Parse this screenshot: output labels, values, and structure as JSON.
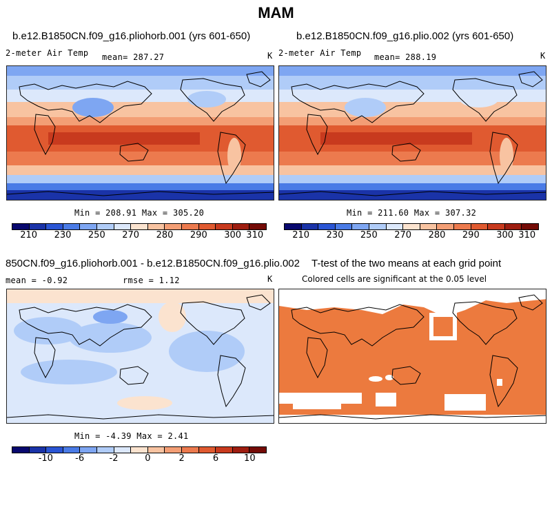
{
  "figure_title": "MAM",
  "panels": {
    "p1": {
      "title": "b.e12.B1850CN.f09_g16.pliohorb.001 (yrs 601-650)",
      "variable": "2-meter Air Temp",
      "mean_label": "mean= 287.27",
      "units": "K",
      "minmax": "Min = 208.91  Max = 305.20"
    },
    "p2": {
      "title": "b.e12.B1850CN.f09_g16.plio.002 (yrs 601-650)",
      "variable": "2-meter Air Temp",
      "mean_label": "mean= 288.19",
      "units": "K",
      "minmax": "Min = 211.60  Max = 307.32"
    },
    "p3": {
      "title": "850CN.f09_g16.pliohorb.001 - b.e12.B1850CN.f09_g16.plio.002",
      "mean_label": "mean =   -0.92",
      "rmse_label": "rmse =    1.12",
      "units": "K",
      "minmax": "Min =  -4.39  Max =   2.41"
    },
    "p4": {
      "title": "T-test of the two means at each grid point",
      "subtitle": "Colored cells are significant at the 0.05 level"
    }
  },
  "colorbars": {
    "temp": {
      "colors": [
        "#08086e",
        "#1a33a8",
        "#2a55d4",
        "#4a7be6",
        "#7ea6f2",
        "#b0ccf8",
        "#dce8fb",
        "#fbe3cf",
        "#f8c3a1",
        "#f39e75",
        "#ec7a4e",
        "#e05a30",
        "#c83a1e",
        "#9e1d10",
        "#740b06"
      ],
      "tick_labels": [
        "210",
        "230",
        "250",
        "270",
        "280",
        "290",
        "300",
        "310"
      ]
    },
    "diff": {
      "colors": [
        "#08086e",
        "#1a33a8",
        "#2a55d4",
        "#4a7be6",
        "#7ea6f2",
        "#b0ccf8",
        "#dce8fb",
        "#fbe3cf",
        "#f8c3a1",
        "#f39e75",
        "#ec7a4e",
        "#e05a30",
        "#c83a1e",
        "#9e1d10",
        "#740b06"
      ],
      "tick_labels": [
        "-10",
        "-6",
        "-2",
        "0",
        "2",
        "6",
        "10"
      ]
    }
  },
  "chart_data": [
    {
      "type": "heatmap",
      "title": "b.e12.B1850CN.f09_g16.pliohorb.001 (yrs 601-650)",
      "variable": "2-meter Air Temp",
      "units": "K",
      "mean": 287.27,
      "min": 208.91,
      "max": 305.2,
      "colorbar_ticks": [
        210,
        230,
        250,
        270,
        280,
        290,
        300,
        310
      ]
    },
    {
      "type": "heatmap",
      "title": "b.e12.B1850CN.f09_g16.plio.002 (yrs 601-650)",
      "variable": "2-meter Air Temp",
      "units": "K",
      "mean": 288.19,
      "min": 211.6,
      "max": 307.32,
      "colorbar_ticks": [
        210,
        230,
        250,
        270,
        280,
        290,
        300,
        310
      ]
    },
    {
      "type": "heatmap",
      "title": "850CN.f09_g16.pliohorb.001 - b.e12.B1850CN.f09_g16.plio.002",
      "units": "K",
      "mean": -0.92,
      "rmse": 1.12,
      "min": -4.39,
      "max": 2.41,
      "colorbar_ticks": [
        -10,
        -6,
        -2,
        0,
        2,
        6,
        10
      ]
    },
    {
      "type": "heatmap",
      "title": "T-test of the two means at each grid point",
      "subtitle": "Colored cells are significant at the 0.05 level",
      "significance_level": 0.05
    }
  ]
}
